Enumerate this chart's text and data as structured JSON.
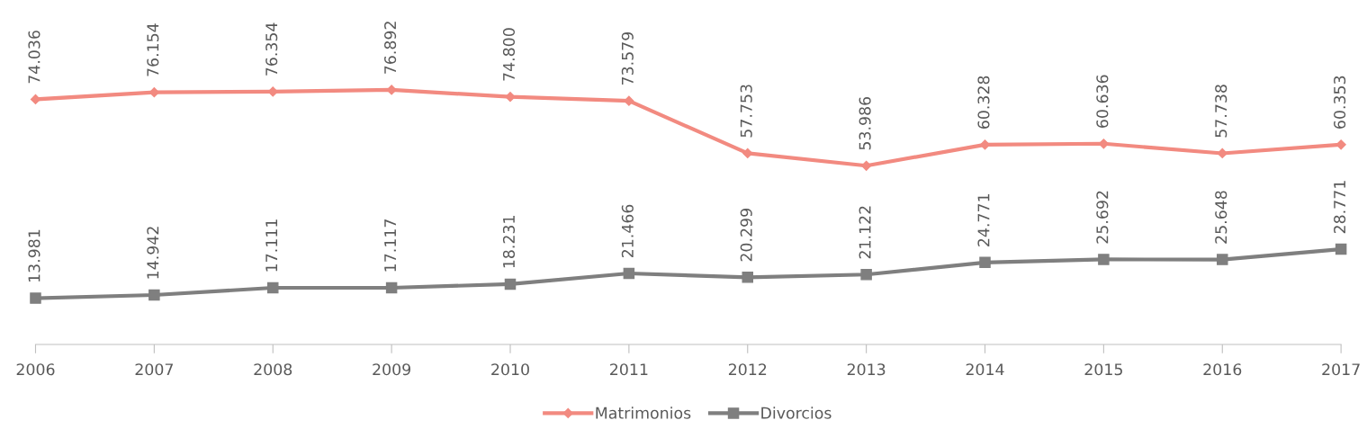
{
  "chart_data": {
    "type": "line",
    "categories": [
      "2006",
      "2007",
      "2008",
      "2009",
      "2010",
      "2011",
      "2012",
      "2013",
      "2014",
      "2015",
      "2016",
      "2017"
    ],
    "series": [
      {
        "name": "Matrimonios",
        "color": "#f28a80",
        "marker": "diamond",
        "values": [
          74.036,
          76.154,
          76.354,
          76.892,
          74.8,
          73.579,
          57.753,
          53.986,
          60.328,
          60.636,
          57.738,
          60.353
        ],
        "value_labels": [
          "74.036",
          "76.154",
          "76.354",
          "76.892",
          "74.800",
          "73.579",
          "57.753",
          "53.986",
          "60.328",
          "60.636",
          "57.738",
          "60.353"
        ]
      },
      {
        "name": "Divorcios",
        "color": "#7f7f7f",
        "marker": "square",
        "values": [
          13.981,
          14.942,
          17.111,
          17.117,
          18.231,
          21.466,
          20.299,
          21.122,
          24.771,
          25.692,
          25.648,
          28.771
        ],
        "value_labels": [
          "13.981",
          "14.942",
          "17.111",
          "17.117",
          "18.231",
          "21.466",
          "20.299",
          "21.122",
          "24.771",
          "25.692",
          "25.648",
          "28.771"
        ]
      }
    ],
    "relative": false,
    "legend": "bottom",
    "grid": false,
    "line_style": "solid"
  }
}
